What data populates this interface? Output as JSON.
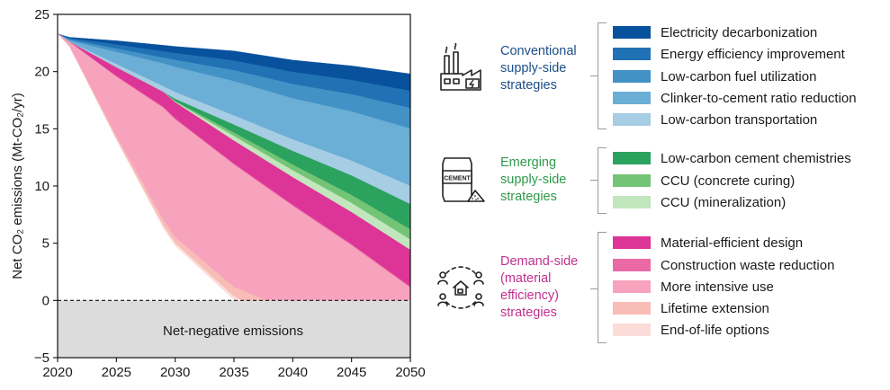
{
  "chart_data": {
    "type": "area",
    "ylabel": "Net CO₂ emissions (Mt-CO₂/yr)",
    "xlabel": "",
    "xlim": [
      2020,
      2050
    ],
    "ylim": [
      -5,
      25
    ],
    "xticks": [
      2020,
      2025,
      2030,
      2035,
      2040,
      2045,
      2050
    ],
    "yticks": [
      -5,
      0,
      5,
      10,
      15,
      20,
      25
    ],
    "annotation": "Net-negative emissions",
    "reference_line_y": 0,
    "x": [
      2020,
      2021,
      2025,
      2029,
      2030,
      2035,
      2040,
      2045,
      2050
    ],
    "baseline_emissions": [
      23.3,
      23.0,
      22.7,
      22.3,
      22.2,
      21.8,
      21.0,
      20.5,
      19.8
    ],
    "series": [
      {
        "name": "Electricity decarbonization",
        "group": "Conventional supply-side strategies",
        "color": "#08519c",
        "values": [
          0.0,
          0.1,
          0.35,
          0.55,
          0.6,
          0.85,
          1.05,
          1.25,
          1.5
        ]
      },
      {
        "name": "Energy efficiency improvement",
        "group": "Conventional supply-side strategies",
        "color": "#2171b5",
        "values": [
          0.0,
          0.1,
          0.35,
          0.55,
          0.6,
          0.85,
          1.05,
          1.25,
          1.5
        ]
      },
      {
        "name": "Low-carbon fuel utilization",
        "group": "Conventional supply-side strategies",
        "color": "#4292c6",
        "values": [
          0.0,
          0.1,
          0.3,
          0.5,
          0.6,
          0.95,
          1.25,
          1.5,
          1.8
        ]
      },
      {
        "name": "Clinker-to-cement ratio reduction",
        "group": "Conventional supply-side strategies",
        "color": "#6baed6",
        "values": [
          0.0,
          0.1,
          1.05,
          2.0,
          2.2,
          3.0,
          3.6,
          4.3,
          5.0
        ]
      },
      {
        "name": "Low-carbon transportation",
        "group": "Conventional supply-side strategies",
        "color": "#a6cde4",
        "values": [
          0.0,
          0.0,
          0.3,
          0.5,
          0.6,
          0.8,
          1.0,
          1.3,
          1.6
        ]
      },
      {
        "name": "Low-carbon cement chemistries",
        "group": "Emerging supply-side strategies",
        "color": "#2ca25f",
        "values": [
          0.0,
          0.0,
          0.0,
          0.0,
          0.2,
          0.7,
          1.2,
          1.7,
          2.2
        ]
      },
      {
        "name": "CCU (concrete curing)",
        "group": "Emerging supply-side strategies",
        "color": "#74c476",
        "values": [
          0.0,
          0.0,
          0.0,
          0.0,
          0.05,
          0.3,
          0.5,
          0.7,
          0.9
        ]
      },
      {
        "name": "CCU (mineralization)",
        "group": "Emerging supply-side strategies",
        "color": "#c2e6bd",
        "values": [
          0.0,
          0.0,
          0.0,
          0.0,
          0.05,
          0.4,
          0.6,
          0.8,
          0.9
        ]
      },
      {
        "name": "Material-efficient design",
        "group": "Demand-side (material efficiency) strategies",
        "color": "#dd3497",
        "values": [
          0.0,
          0.0,
          0.75,
          1.3,
          1.4,
          2.0,
          2.4,
          2.8,
          3.2
        ]
      },
      {
        "name": "Construction waste reduction",
        "group": "Demand-side (material efficiency) strategies",
        "color": "#ea6aa5",
        "values": [
          0.0,
          0.0,
          0.05,
          0.1,
          0.1,
          0.1,
          0.1,
          0.1,
          0.1
        ]
      },
      {
        "name": "More intensive use",
        "group": "Demand-side (material efficiency) strategies",
        "color": "#f7a3bd",
        "values": [
          0.0,
          0.4,
          5.2,
          9.8,
          10.3,
          10.7,
          9.2,
          6.8,
          3.5
        ]
      },
      {
        "name": "Lifetime extension",
        "group": "Demand-side (material efficiency) strategies",
        "color": "#f8bdb6",
        "values": [
          0.0,
          0.0,
          0.25,
          0.5,
          0.5,
          0.8,
          1.2,
          1.5,
          1.3
        ]
      },
      {
        "name": "End-of-life options",
        "group": "Demand-side (material efficiency) strategies",
        "color": "#fbdcd8",
        "values": [
          0.0,
          0.0,
          0.05,
          0.2,
          0.2,
          0.3,
          0.4,
          0.5,
          0.6
        ]
      }
    ],
    "net_emissions": [
      23.3,
      22.2,
      14.55,
      6.35,
      5.0,
      2.05,
      0.2,
      -0.9,
      -0.85
    ]
  },
  "colors": {
    "net_negative_fill": "#dcdcdc",
    "conventional_title": "#1c4f88",
    "emerging_title": "#2e9a4a",
    "demand_title": "#c0308f"
  },
  "legend_groups": [
    {
      "title_lines": [
        "Conventional",
        "supply-side",
        "strategies"
      ],
      "icon": "factory-icon",
      "color_key": "conventional_title",
      "items": [
        "Electricity decarbonization",
        "Energy efficiency improvement",
        "Low-carbon fuel utilization",
        "Clinker-to-cement ratio reduction",
        "Low-carbon transportation"
      ]
    },
    {
      "title_lines": [
        "Emerging",
        "supply-side",
        "strategies"
      ],
      "icon": "cement-bag-icon",
      "color_key": "emerging_title",
      "items": [
        "Low-carbon cement chemistries",
        "CCU (concrete curing)",
        "CCU (mineralization)"
      ]
    },
    {
      "title_lines": [
        "Demand-side",
        "(material",
        "efficiency)",
        "strategies"
      ],
      "icon": "community-house-icon",
      "color_key": "demand_title",
      "items": [
        "Material-efficient design",
        "Construction waste reduction",
        "More intensive use",
        "Lifetime extension",
        "End-of-life options"
      ]
    }
  ],
  "icons": {
    "cement_bag_label": "CEMENT"
  }
}
